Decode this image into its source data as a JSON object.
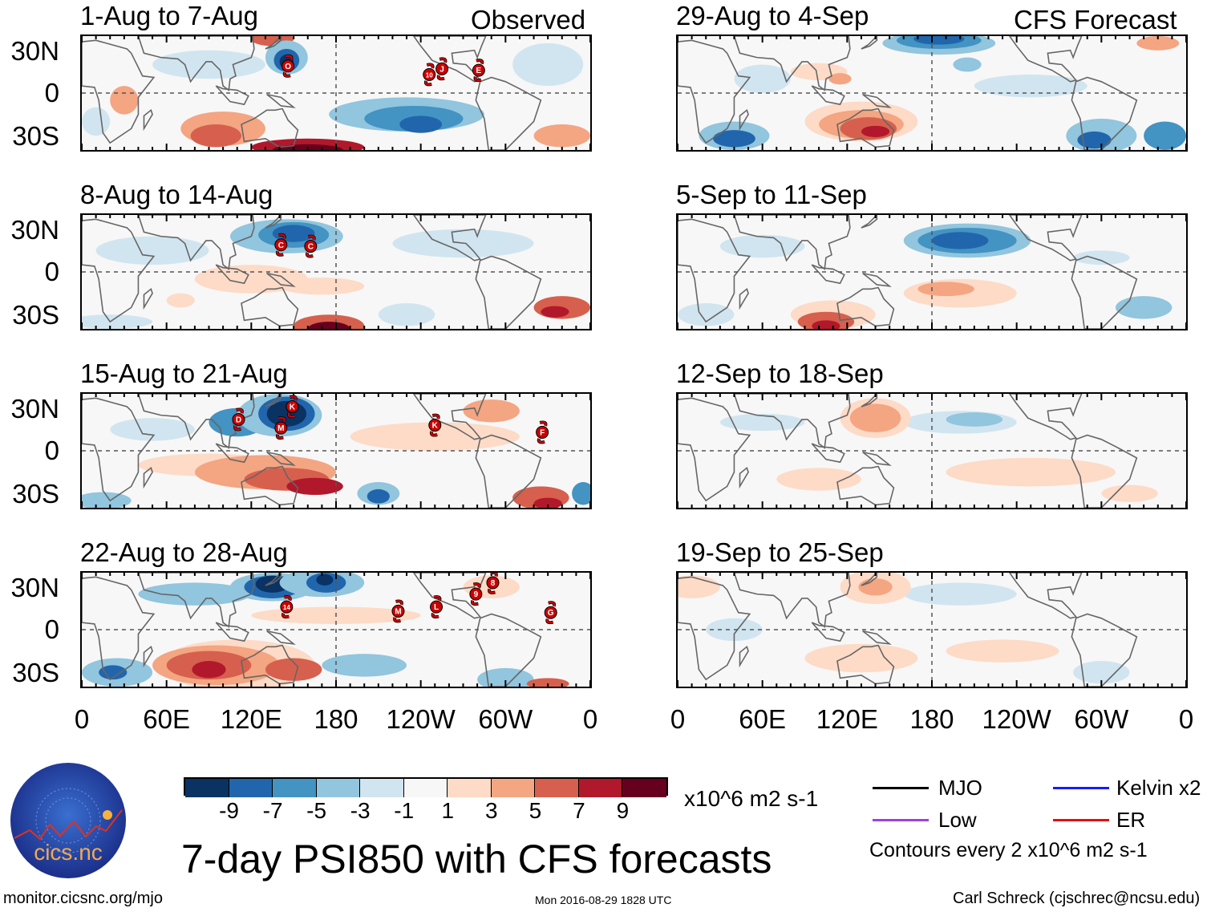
{
  "figure_title": "7-day PSI850 with CFS forecasts",
  "observed_label": "Observed",
  "forecast_label": "CFS Forecast",
  "observed_panels": [
    {
      "title": "1-Aug to 7-Aug",
      "storms": [
        "O",
        "10",
        "J",
        "E"
      ]
    },
    {
      "title": "8-Aug to 14-Aug",
      "storms": [
        "C",
        "C"
      ]
    },
    {
      "title": "15-Aug to 21-Aug",
      "storms": [
        "K",
        "D",
        "M",
        "K",
        "F"
      ]
    },
    {
      "title": "22-Aug to 28-Aug",
      "storms": [
        "14",
        "M",
        "L",
        "9",
        "8",
        "G"
      ]
    }
  ],
  "forecast_panels": [
    {
      "title": "29-Aug to 4-Sep"
    },
    {
      "title": "5-Sep to 11-Sep"
    },
    {
      "title": "12-Sep to 18-Sep"
    },
    {
      "title": "19-Sep to 25-Sep"
    }
  ],
  "lat_labels": [
    "30N",
    "0",
    "30S"
  ],
  "lon_labels": [
    "0",
    "60E",
    "120E",
    "180",
    "120W",
    "60W",
    "0"
  ],
  "colorbar": {
    "colors": [
      "#0a3263",
      "#2166ac",
      "#4393c3",
      "#92c5de",
      "#d1e5f0",
      "#f7f7f7",
      "#fddbc7",
      "#f4a582",
      "#d6604d",
      "#b2182b",
      "#67001f"
    ],
    "labels": [
      "-9",
      "-7",
      "-5",
      "-3",
      "-1",
      "1",
      "3",
      "5",
      "7",
      "9"
    ],
    "units": "x10^6 m2 s-1"
  },
  "legend": {
    "items": [
      {
        "label": "MJO",
        "color": "#000000"
      },
      {
        "label": "Kelvin x2",
        "color": "#1a1aff"
      },
      {
        "label": "Low",
        "color": "#a040e0"
      },
      {
        "label": "ER",
        "color": "#e01010"
      }
    ],
    "contours_note": "Contours every 2 x10^6 m2 s-1"
  },
  "logo": {
    "text": "cics.nc",
    "ring_text": "Cooperative Institute for Climate and Satellites"
  },
  "footer": {
    "url": "monitor.cicsnc.org/mjo",
    "timestamp": "Mon 2016-08-29 1828 UTC",
    "author": "Carl Schreck (cjschrec@ncsu.edu)"
  }
}
